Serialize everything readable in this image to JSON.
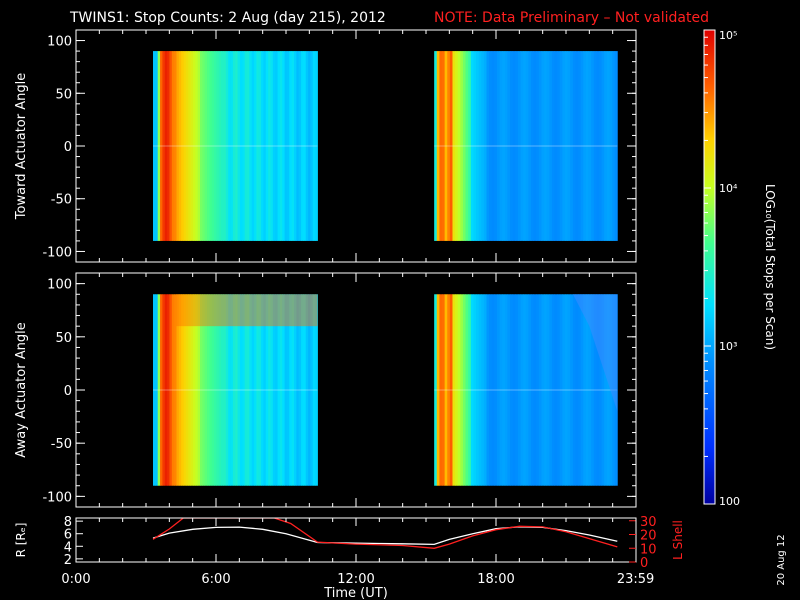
{
  "header": {
    "title": "TWINS1: Stop Counts:  2 Aug (day 215), 2012",
    "note": "NOTE: Data Preliminary – Not validated"
  },
  "colorbar": {
    "label": "LOG₁₀(Total Stops per Scan)",
    "ticks": [
      {
        "value": 100,
        "label": "100"
      },
      {
        "value": 1000,
        "label": "10³"
      },
      {
        "value": 10000,
        "label": "10⁴"
      },
      {
        "value": 100000,
        "label": "10⁵"
      }
    ],
    "range": [
      100,
      100000
    ],
    "scale": "log"
  },
  "date_stamp": "20 Aug 12",
  "chart_data": [
    {
      "type": "heatmap",
      "ylabel": "Toward Actuator Angle",
      "ylim": [
        -110,
        110
      ],
      "yticks": [
        100,
        50,
        0,
        -50,
        -100
      ],
      "xlim_hours": [
        0,
        24
      ],
      "data_windows_hours": [
        [
          3.3,
          10.35
        ],
        [
          15.35,
          23.2
        ]
      ],
      "angle_range": [
        -90,
        90
      ]
    },
    {
      "type": "heatmap",
      "ylabel": "Away Actuator Angle",
      "ylim": [
        -110,
        110
      ],
      "yticks": [
        100,
        50,
        0,
        -50,
        -100
      ],
      "xlim_hours": [
        0,
        24
      ],
      "data_windows_hours": [
        [
          3.3,
          10.35
        ],
        [
          15.35,
          23.2
        ]
      ],
      "angle_range": [
        -90,
        90
      ]
    },
    {
      "type": "line",
      "ylabel_left": "R [Rₑ]",
      "ylabel_right": "L Shell",
      "xlabel": "Time (UT)",
      "xticks": [
        {
          "hour": 0,
          "label": "0:00"
        },
        {
          "hour": 6,
          "label": "6:00"
        },
        {
          "hour": 12,
          "label": "12:00"
        },
        {
          "hour": 18,
          "label": "18:00"
        },
        {
          "hour": 23.983,
          "label": "23:59"
        }
      ],
      "ylim_left": [
        1.5,
        8.5
      ],
      "yticks_left": [
        2,
        4,
        6,
        8
      ],
      "ylim_right": [
        0,
        32
      ],
      "yticks_right": [
        0,
        10,
        20,
        30
      ],
      "series": [
        {
          "name": "R [Rₑ]",
          "color": "#ffffff",
          "x": [
            3.3,
            4,
            5,
            6,
            7,
            8,
            9,
            10.35,
            11,
            12,
            13,
            14,
            15.35,
            16,
            17,
            18,
            19,
            20,
            21,
            22,
            23.2
          ],
          "y": [
            5.3,
            6.1,
            6.7,
            7.0,
            7.05,
            6.7,
            6.0,
            4.6,
            4.55,
            4.5,
            4.45,
            4.4,
            4.3,
            5.1,
            6.0,
            6.8,
            7.1,
            7.0,
            6.5,
            5.8,
            4.8
          ]
        },
        {
          "name": "L Shell",
          "color": "#ff2020",
          "x": [
            3.3,
            4,
            4.6,
            5.3,
            8.5,
            9.2,
            10.35,
            12,
            14,
            15.35,
            16,
            17,
            18,
            19,
            20,
            21,
            22,
            23.2
          ],
          "y": [
            16.5,
            24,
            32,
            32,
            32,
            28,
            14.5,
            13,
            12,
            10,
            13,
            19,
            23.5,
            26,
            25.5,
            22,
            17,
            11
          ]
        }
      ]
    }
  ]
}
